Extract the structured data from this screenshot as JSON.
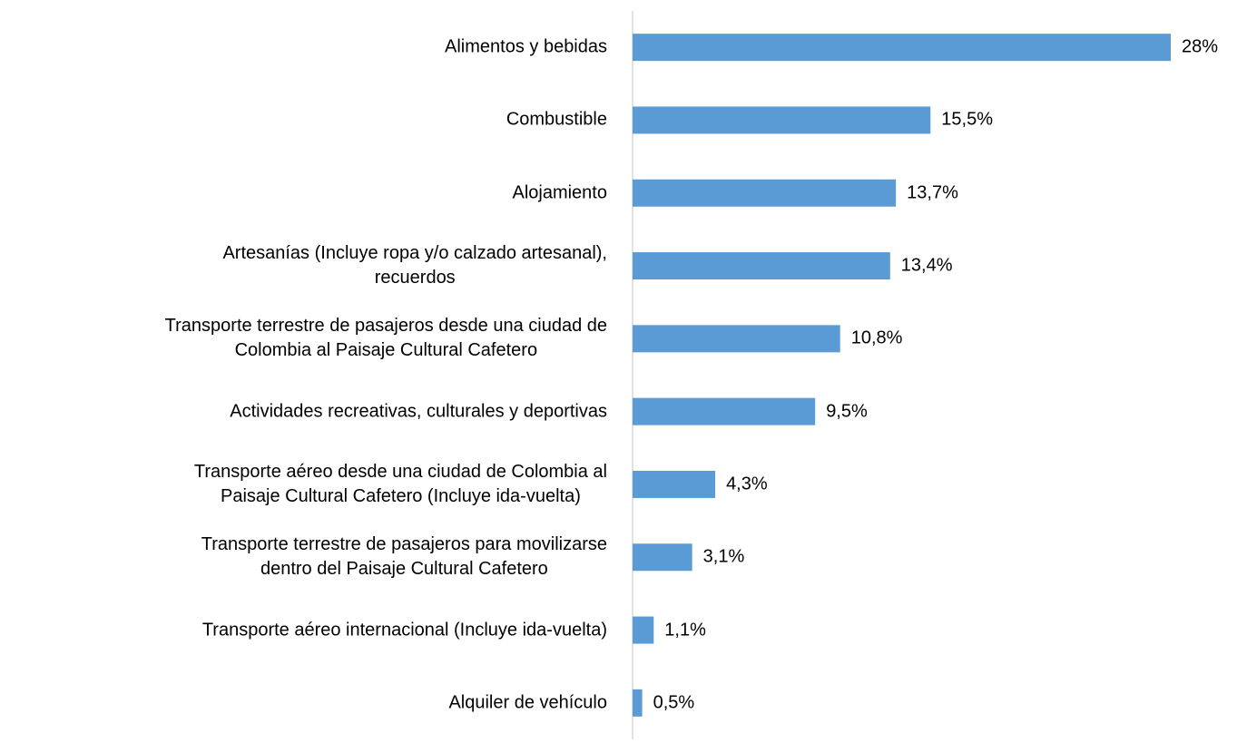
{
  "chart_data": {
    "type": "bar",
    "orientation": "horizontal",
    "color": "#5b9bd5",
    "categories": [
      "Alimentos y bebidas",
      "Combustible",
      "Alojamiento",
      "Artesanías (Incluye ropa y/o calzado artesanal),\nrecuerdos",
      "Transporte terrestre de pasajeros desde una ciudad de\nColombia al Paisaje Cultural Cafetero",
      "Actividades recreativas, culturales y deportivas",
      "Transporte aéreo desde una ciudad de Colombia al\nPaisaje Cultural Cafetero (Incluye ida-vuelta)",
      "Transporte terrestre de pasajeros para movilizarse\ndentro del Paisaje Cultural Cafetero",
      "Transporte aéreo internacional (Incluye ida-vuelta)",
      "Alquiler de vehículo"
    ],
    "values": [
      28,
      15.5,
      13.7,
      13.4,
      10.8,
      9.5,
      4.3,
      3.1,
      1.1,
      0.5
    ],
    "value_labels": [
      "28%",
      "15,5%",
      "13,7%",
      "13,4%",
      "10,8%",
      "9,5%",
      "4,3%",
      "3,1%",
      "1,1%",
      "0,5%"
    ]
  }
}
